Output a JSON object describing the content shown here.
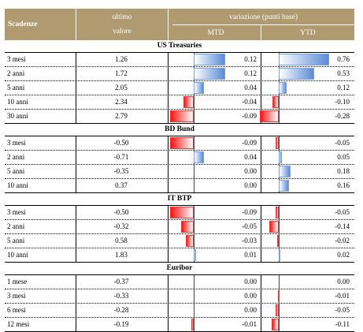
{
  "header": {
    "col_scadenze": "Scadenze",
    "col_ultimo_1": "ultimo",
    "col_ultimo_2": "valore",
    "col_variazione": "variazione (punti base)",
    "col_mtd": "MTD",
    "col_ytd": "YTD"
  },
  "colors": {
    "header_bg": "#b09a70",
    "positive_bar": "#5b8bd6",
    "negative_bar": "#ff1111"
  },
  "sections": [
    {
      "title": "US Treasuries",
      "rows": [
        {
          "label": "3 mesi",
          "value": "1.26",
          "mtd": 0.12,
          "mtd_text": "0.12",
          "ytd": 0.76,
          "ytd_text": "0.76"
        },
        {
          "label": "2 anni",
          "value": "1.72",
          "mtd": 0.12,
          "mtd_text": "0.12",
          "ytd": 0.53,
          "ytd_text": "0.53"
        },
        {
          "label": "5 anni",
          "value": "2.05",
          "mtd": 0.04,
          "mtd_text": "0.04",
          "ytd": 0.12,
          "ytd_text": "0.12"
        },
        {
          "label": "10 anni",
          "value": "2.34",
          "mtd": -0.04,
          "mtd_text": "-0.04",
          "ytd": -0.1,
          "ytd_text": "-0.10"
        },
        {
          "label": "30 anni",
          "value": "2.79",
          "mtd": -0.09,
          "mtd_text": "-0.09",
          "ytd": -0.28,
          "ytd_text": "-0.28"
        }
      ]
    },
    {
      "title": "BD Bund",
      "rows": [
        {
          "label": "3 mesi",
          "value": "-0.50",
          "mtd": -0.09,
          "mtd_text": "-0.09",
          "ytd": -0.05,
          "ytd_text": "-0.05"
        },
        {
          "label": "2 anni",
          "value": "-0.71",
          "mtd": 0.04,
          "mtd_text": "0.04",
          "ytd": 0.05,
          "ytd_text": "0.05"
        },
        {
          "label": "5 anni",
          "value": "-0.35",
          "mtd": 0.0,
          "mtd_text": "0.00",
          "ytd": 0.18,
          "ytd_text": "0.18"
        },
        {
          "label": "10 anni",
          "value": "0.37",
          "mtd": 0.0,
          "mtd_text": "0.00",
          "ytd": 0.16,
          "ytd_text": "0.16"
        }
      ]
    },
    {
      "title": "IT BTP",
      "rows": [
        {
          "label": "3 mesi",
          "value": "-0.50",
          "mtd": -0.09,
          "mtd_text": "-0.09",
          "ytd": -0.05,
          "ytd_text": "-0.05"
        },
        {
          "label": "2 anni",
          "value": "-0.32",
          "mtd": -0.05,
          "mtd_text": "-0.05",
          "ytd": -0.14,
          "ytd_text": "-0.14"
        },
        {
          "label": "5 anni",
          "value": "0.58",
          "mtd": -0.03,
          "mtd_text": "-0.03",
          "ytd": -0.02,
          "ytd_text": "-0.02"
        },
        {
          "label": "10 anni",
          "value": "1.83",
          "mtd": 0.01,
          "mtd_text": "0.01",
          "ytd": 0.02,
          "ytd_text": "0.02"
        }
      ]
    },
    {
      "title": "Euribor",
      "rows": [
        {
          "label": "1 mese",
          "value": "-0.37",
          "mtd": 0.0,
          "mtd_text": "0.00",
          "ytd": 0.0,
          "ytd_text": "0.00"
        },
        {
          "label": "3 mesi",
          "value": "-0.33",
          "mtd": 0.0,
          "mtd_text": "0.00",
          "ytd": -0.01,
          "ytd_text": "-0.01"
        },
        {
          "label": "6 mesi",
          "value": "-0.28",
          "mtd": 0.0,
          "mtd_text": "0.00",
          "ytd": -0.05,
          "ytd_text": "-0.05"
        },
        {
          "label": "12 mesi",
          "value": "-0.19",
          "mtd": -0.01,
          "mtd_text": "-0.01",
          "ytd": -0.11,
          "ytd_text": "-0.11"
        }
      ]
    }
  ]
}
